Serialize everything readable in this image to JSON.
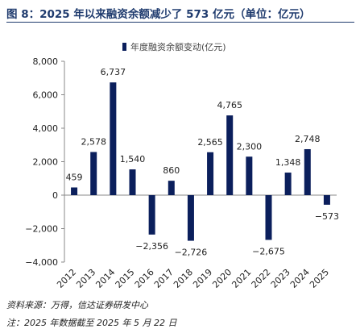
{
  "figure": {
    "title": "图 8：2025 年以来融资余额减少了 573 亿元（单位：亿元）",
    "source": "资料来源：万得，信达证券研发中心",
    "note": "注：2025 年数据截至 2025 年 5 月 22 日"
  },
  "chart_data": {
    "type": "bar",
    "categories": [
      "2012",
      "2013",
      "2014",
      "2015",
      "2016",
      "2017",
      "2018",
      "2019",
      "2020",
      "2021",
      "2022",
      "2023",
      "2024",
      "2025"
    ],
    "series": [
      {
        "name": "年度融资余额变动(亿元)",
        "values": [
          459,
          2578,
          6737,
          1540,
          -2356,
          860,
          -2726,
          2565,
          4765,
          2300,
          -2675,
          1348,
          2748,
          -573
        ],
        "labels": [
          "459",
          "2,578",
          "6,737",
          "1,540",
          "−2,356",
          "860",
          "−2,726",
          "2,565",
          "4,765",
          "2,300",
          "−2,675",
          "1,348",
          "2,748",
          "−573"
        ]
      }
    ],
    "ylim": [
      -4000,
      8000
    ],
    "yticks": [
      -4000,
      -2000,
      0,
      2000,
      4000,
      6000,
      8000
    ],
    "ytick_labels": [
      "−4,000",
      "−2,000",
      "0",
      "2,000",
      "4,000",
      "6,000",
      "8,000"
    ],
    "legend_position": "top",
    "grid": false,
    "colors": {
      "bar": "#0b1f5c",
      "axis": "#888888",
      "title": "#1f3b6e"
    }
  }
}
